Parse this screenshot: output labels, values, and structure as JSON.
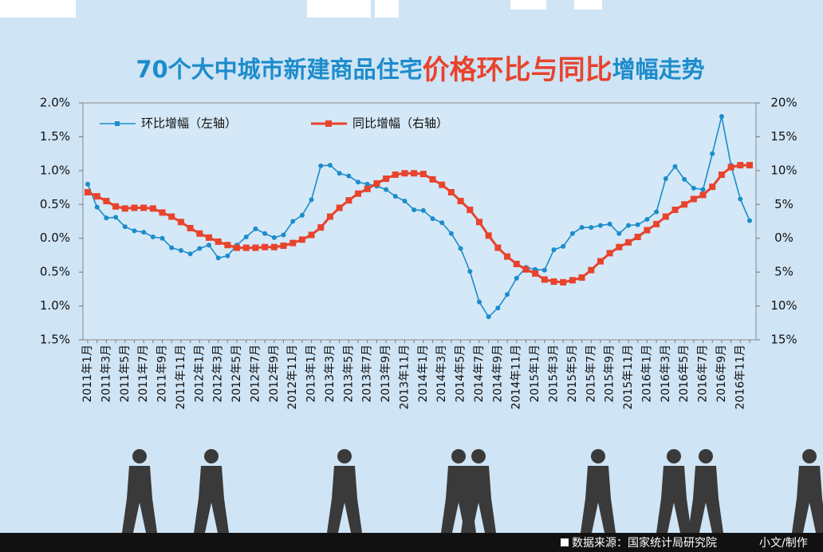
{
  "chart_data": {
    "type": "line",
    "title_parts": [
      "70个大中城市新建商品住宅",
      "价格环比与同比",
      "增幅走势"
    ],
    "categories": [
      "2011年1月",
      null,
      "2011年3月",
      null,
      "2011年5月",
      null,
      "2011年7月",
      null,
      "2011年9月",
      null,
      "2011年11月",
      null,
      "2012年1月",
      null,
      "2012年3月",
      null,
      "2012年5月",
      null,
      "2012年7月",
      null,
      "2012年9月",
      null,
      "2012年11月",
      null,
      "2013年1月",
      null,
      "2013年3月",
      null,
      "2013年5月",
      null,
      "2013年7月",
      null,
      "2013年9月",
      null,
      "2013年11月",
      null,
      "2014年1月",
      null,
      "2014年3月",
      null,
      "2014年5月",
      null,
      "2014年7月",
      null,
      "2014年9月",
      null,
      "2014年11月",
      null,
      "2015年1月",
      null,
      "2015年3月",
      null,
      "2015年5月",
      null,
      "2015年7月",
      null,
      "2015年9月",
      null,
      "2015年11月",
      null,
      "2016年1月",
      null,
      "2016年3月",
      null,
      "2016年5月",
      null,
      "2016年7月",
      null,
      "2016年9月",
      null,
      "2016年11月",
      null
    ],
    "series": [
      {
        "name": "环比增幅（左轴）",
        "color": "#1c8ccb",
        "axis": "y",
        "values": [
          0.8,
          0.46,
          0.3,
          0.31,
          0.17,
          0.11,
          0.09,
          0.02,
          0.0,
          -0.14,
          -0.18,
          -0.23,
          -0.15,
          -0.1,
          -0.29,
          -0.26,
          -0.1,
          0.02,
          0.14,
          0.07,
          0.01,
          0.05,
          0.25,
          0.34,
          0.57,
          1.07,
          1.08,
          0.96,
          0.92,
          0.83,
          0.8,
          0.77,
          0.72,
          0.62,
          0.55,
          0.42,
          0.41,
          0.29,
          0.23,
          0.07,
          -0.15,
          -0.49,
          -0.94,
          -1.16,
          -1.03,
          -0.83,
          -0.59,
          -0.43,
          -0.46,
          -0.47,
          -0.17,
          -0.12,
          0.07,
          0.16,
          0.16,
          0.19,
          0.21,
          0.07,
          0.19,
          0.2,
          0.28,
          0.39,
          0.88,
          1.06,
          0.87,
          0.74,
          0.72,
          1.25,
          1.8,
          1.08,
          0.58,
          0.26
        ]
      },
      {
        "name": "同比增幅（右轴）",
        "color": "#e8432d",
        "axis": "y2",
        "values": [
          6.8,
          6.2,
          5.5,
          4.7,
          4.4,
          4.5,
          4.5,
          4.4,
          3.8,
          3.2,
          2.4,
          1.5,
          0.7,
          0.1,
          -0.5,
          -1.0,
          -1.4,
          -1.4,
          -1.4,
          -1.3,
          -1.3,
          -1.1,
          -0.7,
          -0.2,
          0.5,
          1.6,
          3.2,
          4.5,
          5.6,
          6.6,
          7.3,
          8.1,
          8.8,
          9.4,
          9.6,
          9.6,
          9.5,
          8.7,
          7.9,
          6.8,
          5.5,
          4.2,
          2.4,
          0.4,
          -1.4,
          -2.7,
          -3.8,
          -4.6,
          -5.2,
          -6.1,
          -6.4,
          -6.5,
          -6.2,
          -5.8,
          -4.7,
          -3.4,
          -2.2,
          -1.3,
          -0.6,
          0.2,
          1.2,
          2.1,
          3.2,
          4.2,
          5.0,
          5.8,
          6.4,
          7.6,
          9.4,
          10.5,
          10.8,
          10.8
        ]
      }
    ],
    "ylim": [
      -1.5,
      2
    ],
    "yticks": [
      {
        "value": 2,
        "label": "2.0%"
      },
      {
        "value": 1.5,
        "label": "1.5%"
      },
      {
        "value": 1,
        "label": "1.0%"
      },
      {
        "value": 0.5,
        "label": "0.5%"
      },
      {
        "value": 0,
        "label": "0.0%"
      },
      {
        "value": -0.5,
        "label": "0.5%"
      },
      {
        "value": -1,
        "label": "1.0%"
      },
      {
        "value": -1.5,
        "label": "1.5%"
      }
    ],
    "y2lim": [
      -15,
      20
    ],
    "y2ticks": [
      {
        "value": 20,
        "label": "20%"
      },
      {
        "value": 15,
        "label": "15%"
      },
      {
        "value": 10,
        "label": "10%"
      },
      {
        "value": 5,
        "label": "5%"
      },
      {
        "value": 0,
        "label": "0%"
      },
      {
        "value": -5,
        "label": "5%"
      },
      {
        "value": -10,
        "label": "10%"
      },
      {
        "value": -15,
        "label": "15%"
      }
    ],
    "grid": false,
    "legend": "top-left",
    "source": "数据来源：国家统计局研究院",
    "credit": "小文/制作"
  }
}
